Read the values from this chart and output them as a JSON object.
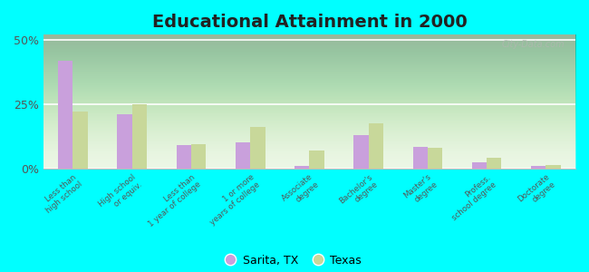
{
  "title": "Educational Attainment in 2000",
  "categories": [
    "Less than\nhigh school",
    "High school\nor equiv.",
    "Less than\n1 year of college",
    "1 or more\nyears of college",
    "Associate\ndegree",
    "Bachelor's\ndegree",
    "Master's\ndegree",
    "Profess.\nschool degree",
    "Doctorate\ndegree"
  ],
  "sarita_values": [
    42.0,
    21.0,
    9.0,
    10.0,
    1.0,
    13.0,
    8.5,
    2.5,
    1.0
  ],
  "texas_values": [
    22.0,
    25.0,
    9.5,
    16.0,
    7.0,
    17.5,
    8.0,
    4.0,
    1.5
  ],
  "sarita_color": "#c9a0dc",
  "texas_color": "#c8d89a",
  "background_color": "#00ffff",
  "yticks": [
    0,
    25,
    50
  ],
  "ylim": [
    0,
    52
  ],
  "legend_sarita": "Sarita, TX",
  "legend_texas": "Texas",
  "title_fontsize": 14,
  "watermark": "City-Data.com"
}
